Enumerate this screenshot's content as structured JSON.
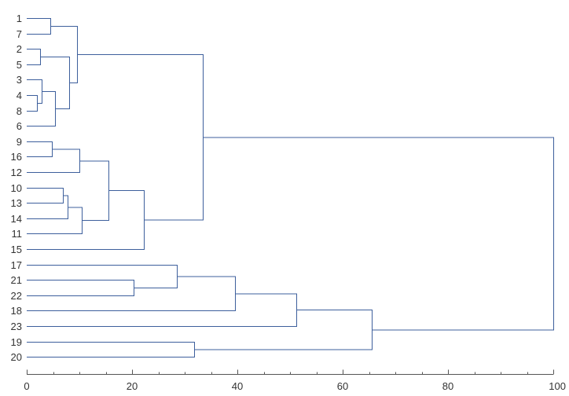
{
  "chart_data": {
    "type": "dendrogram",
    "title": "",
    "xlabel": "",
    "ylabel": "",
    "orientation": "horizontal",
    "xlim": [
      0,
      100
    ],
    "x_ticks": [
      0,
      20,
      40,
      60,
      80,
      100
    ],
    "grid": false,
    "leaves": [
      "1",
      "7",
      "2",
      "5",
      "3",
      "4",
      "8",
      "6",
      "9",
      "16",
      "12",
      "10",
      "13",
      "14",
      "11",
      "15",
      "17",
      "21",
      "22",
      "18",
      "23",
      "19",
      "20"
    ],
    "merges": [
      {
        "left": "1",
        "right": "7",
        "height": 4.5,
        "id": "c1"
      },
      {
        "left": "2",
        "right": "5",
        "height": 2.5,
        "id": "c2"
      },
      {
        "left": "4",
        "right": "8",
        "height": 2.0,
        "id": "c3"
      },
      {
        "left": "3",
        "right": "c3",
        "height": 2.8,
        "id": "c4"
      },
      {
        "left": "c4",
        "right": "6",
        "height": 5.3,
        "id": "c5"
      },
      {
        "left": "c2",
        "right": "c5",
        "height": 8.0,
        "id": "c6"
      },
      {
        "left": "c1",
        "right": "c6",
        "height": 9.5,
        "id": "c7"
      },
      {
        "left": "9",
        "right": "16",
        "height": 4.8,
        "id": "c8"
      },
      {
        "left": "c8",
        "right": "12",
        "height": 10.0,
        "id": "c9"
      },
      {
        "left": "10",
        "right": "13",
        "height": 6.8,
        "id": "c10"
      },
      {
        "left": "c10",
        "right": "14",
        "height": 7.8,
        "id": "c11"
      },
      {
        "left": "c11",
        "right": "11",
        "height": 10.5,
        "id": "c12"
      },
      {
        "left": "c9",
        "right": "c12",
        "height": 15.5,
        "id": "c13"
      },
      {
        "left": "c13",
        "right": "15",
        "height": 22.2,
        "id": "c14"
      },
      {
        "left": "c7",
        "right": "c14",
        "height": 33.5,
        "id": "c15"
      },
      {
        "left": "21",
        "right": "22",
        "height": 20.3,
        "id": "c16"
      },
      {
        "left": "17",
        "right": "c16",
        "height": 28.5,
        "id": "c17"
      },
      {
        "left": "c17",
        "right": "18",
        "height": 39.5,
        "id": "c18"
      },
      {
        "left": "c18",
        "right": "23",
        "height": 51.2,
        "id": "c19"
      },
      {
        "left": "19",
        "right": "20",
        "height": 31.8,
        "id": "c20"
      },
      {
        "left": "c19",
        "right": "c20",
        "height": 65.5,
        "id": "c21"
      },
      {
        "left": "c15",
        "right": "c21",
        "height": 100,
        "id": "c22"
      }
    ],
    "colors": {
      "branch": "#3d5f9c",
      "axis": "#555555",
      "text": "#333333"
    }
  }
}
